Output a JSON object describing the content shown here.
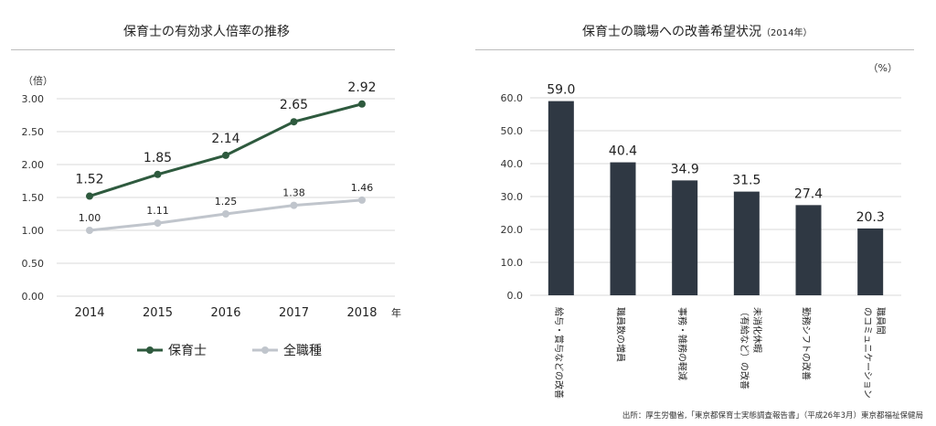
{
  "chart_data": [
    {
      "type": "line",
      "title": "保育士の有効求人倍率の推移",
      "ylabel": "（倍）",
      "xlabel": "年",
      "x": [
        "2014",
        "2015",
        "2016",
        "2017",
        "2018"
      ],
      "ylim": [
        0,
        3.0
      ],
      "yticks": [
        "0.00",
        "0.50",
        "1.00",
        "1.50",
        "2.00",
        "2.50",
        "3.00"
      ],
      "grid": true,
      "legend": "bottom",
      "series": [
        {
          "name": "保育士",
          "values": [
            1.52,
            1.85,
            2.14,
            2.65,
            2.92
          ],
          "labels": [
            "1.52",
            "1.85",
            "2.14",
            "2.65",
            "2.92"
          ],
          "color": "#2e5a3e"
        },
        {
          "name": "全職種",
          "values": [
            1.0,
            1.11,
            1.25,
            1.38,
            1.46
          ],
          "labels": [
            "1.00",
            "1.11",
            "1.25",
            "1.38",
            "1.46"
          ],
          "color": "#c0c5cc"
        }
      ]
    },
    {
      "type": "bar",
      "title": "保育士の職場への改善希望状況",
      "subtitle": "（2014年）",
      "ylabel": "（%）",
      "ylim": [
        0,
        60
      ],
      "yticks": [
        "0.0",
        "10.0",
        "20.0",
        "30.0",
        "40.0",
        "50.0",
        "60.0"
      ],
      "grid": true,
      "color": "#2f3843",
      "categories": [
        {
          "lines": [
            "給与・賞与などの改善"
          ]
        },
        {
          "lines": [
            "職員数の増員"
          ]
        },
        {
          "lines": [
            "事務・雑務の軽減"
          ]
        },
        {
          "lines": [
            "（有給など）の改善",
            "未消化休暇"
          ]
        },
        {
          "lines": [
            "勤務シフトの改善"
          ]
        },
        {
          "lines": [
            "のコミュニケーション",
            "職員間"
          ]
        }
      ],
      "values": [
        59.0,
        40.4,
        34.9,
        31.5,
        27.4,
        20.3
      ],
      "labels": [
        "59.0",
        "40.4",
        "34.9",
        "31.5",
        "27.4",
        "20.3"
      ]
    }
  ],
  "source": "出所：厚生労働省,「東京都保育士実態調査報告書」（平成26年3月）東京都福祉保健局"
}
